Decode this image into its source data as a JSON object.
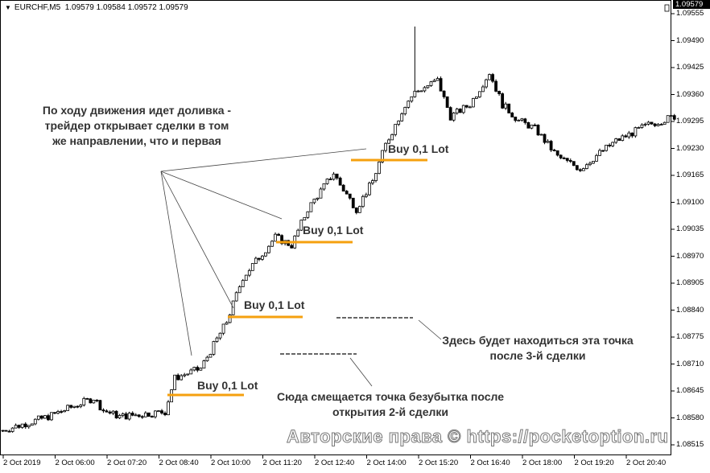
{
  "header": {
    "symbol": "EURCHF,M5",
    "quote": "1.09579 1.09584 1.09572 1.09579"
  },
  "price_axis": {
    "current": "1.09579",
    "ticks": [
      "1.09555",
      "1.09490",
      "1.09425",
      "1.09360",
      "1.09295",
      "1.09230",
      "1.09165",
      "1.09100",
      "1.09035",
      "1.08970",
      "1.08905",
      "1.08840",
      "1.08775",
      "1.08710",
      "1.08645",
      "1.08580",
      "1.08515"
    ]
  },
  "time_axis": [
    "2 Oct 2019",
    "2 Oct 06:00",
    "2 Oct 07:20",
    "2 Oct 08:40",
    "2 Oct 10:00",
    "2 Oct 11:20",
    "2 Oct 12:40",
    "2 Oct 14:00",
    "2 Oct 15:20",
    "2 Oct 16:40",
    "2 Oct 18:00",
    "2 Oct 19:20",
    "2 Oct 20:40"
  ],
  "annotations": {
    "main": "По ходу движения идет доливка - трейдер открывает сделки в том же направлении, что и первая",
    "buy_labels": [
      "Buy 0,1 Lot",
      "Buy 0,1 Lot",
      "Buy 0,1 Lot",
      "Buy 0,1 Lot"
    ],
    "after3": "Здесь будет находиться эта точка после 3-й сделки",
    "after2": "Сюда смещается точка безубытка после открытия 2-й сделки"
  },
  "watermark": "Авторские права © https://pocketoption.ru",
  "colors": {
    "buy_line": "#f5a00f",
    "candle": "#000000"
  },
  "chart_data": {
    "type": "candlestick",
    "symbol": "EURCHF",
    "timeframe": "M5",
    "ylim": [
      1.085,
      1.0958
    ],
    "approx_close_path": [
      {
        "t": "04:40",
        "close": 1.0855
      },
      {
        "t": "05:50",
        "close": 1.08583
      },
      {
        "t": "07:00",
        "close": 1.08628
      },
      {
        "t": "07:15",
        "close": 1.08598
      },
      {
        "t": "07:40",
        "close": 1.08583
      },
      {
        "t": "08:50",
        "close": 1.08595
      },
      {
        "t": "09:05",
        "close": 1.08676
      },
      {
        "t": "09:45",
        "close": 1.08699
      },
      {
        "t": "10:25",
        "close": 1.08812
      },
      {
        "t": "10:50",
        "close": 1.08919
      },
      {
        "t": "11:40",
        "close": 1.09016
      },
      {
        "t": "12:05",
        "close": 1.08996
      },
      {
        "t": "12:30",
        "close": 1.09084
      },
      {
        "t": "13:10",
        "close": 1.09171
      },
      {
        "t": "13:20",
        "close": 1.09142
      },
      {
        "t": "13:45",
        "close": 1.09084
      },
      {
        "t": "14:10",
        "close": 1.09151
      },
      {
        "t": "14:30",
        "close": 1.09239
      },
      {
        "t": "15:00",
        "close": 1.09336
      },
      {
        "t": "15:15",
        "close": 1.09365
      },
      {
        "t": "15:50",
        "close": 1.09394
      },
      {
        "t": "16:10",
        "close": 1.09307
      },
      {
        "t": "16:40",
        "close": 1.09336
      },
      {
        "t": "17:10",
        "close": 1.09413
      },
      {
        "t": "17:30",
        "close": 1.09336
      },
      {
        "t": "17:55",
        "close": 1.09297
      },
      {
        "t": "18:20",
        "close": 1.09278
      },
      {
        "t": "18:55",
        "close": 1.0921
      },
      {
        "t": "19:30",
        "close": 1.09181
      },
      {
        "t": "20:00",
        "close": 1.09219
      },
      {
        "t": "20:25",
        "close": 1.09248
      },
      {
        "t": "21:15",
        "close": 1.09287
      },
      {
        "t": "21:55",
        "close": 1.09307
      }
    ],
    "spike": {
      "t": "15:15",
      "high": 1.09524
    }
  }
}
